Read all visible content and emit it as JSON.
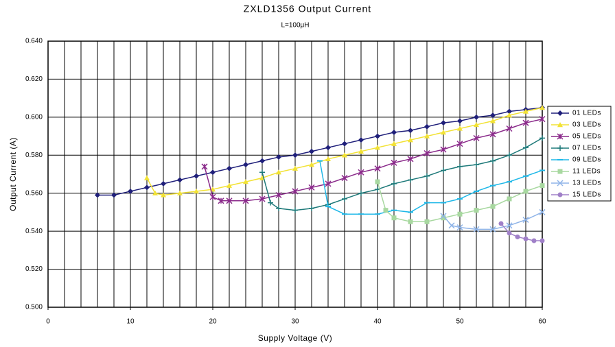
{
  "chart_data": {
    "type": "line",
    "title": "ZXLD1356 Output Current",
    "subtitle": "L=100μH",
    "x_label": "Supply Voltage (V)",
    "y_label": "Output Current (A)",
    "xlim": [
      0,
      60
    ],
    "xticks": [
      0,
      10,
      20,
      30,
      40,
      50,
      60
    ],
    "x_gridlines": [
      0,
      2,
      4,
      6,
      8,
      10,
      12,
      14,
      16,
      18,
      20,
      22,
      24,
      26,
      28,
      30,
      32,
      34,
      36,
      38,
      40,
      42,
      44,
      46,
      48,
      50,
      52,
      54,
      56,
      58,
      60
    ],
    "ylim": [
      0.5,
      0.64
    ],
    "yticks": [
      {
        "value": 0.5,
        "label": "0.500"
      },
      {
        "value": 0.52,
        "label": "0.520"
      },
      {
        "value": 0.54,
        "label": "0.540"
      },
      {
        "value": 0.56,
        "label": "0.560"
      },
      {
        "value": 0.58,
        "label": "0.580"
      },
      {
        "value": 0.6,
        "label": "0.600"
      },
      {
        "value": 0.62,
        "label": "0.620"
      },
      {
        "value": 0.64,
        "label": "0.640"
      }
    ],
    "grid": true,
    "legend": "right",
    "series": [
      {
        "name": "01 LEDs",
        "color": "#1f1f7a",
        "marker": "diamond",
        "x": [
          6,
          8,
          10,
          12,
          14,
          16,
          18,
          20,
          22,
          24,
          26,
          28,
          30,
          32,
          34,
          36,
          38,
          40,
          42,
          44,
          46,
          48,
          50,
          52,
          54,
          56,
          58,
          60
        ],
        "values": [
          0.559,
          0.559,
          0.561,
          0.563,
          0.565,
          0.567,
          0.569,
          0.571,
          0.573,
          0.575,
          0.577,
          0.579,
          0.58,
          0.582,
          0.584,
          0.586,
          0.588,
          0.59,
          0.592,
          0.593,
          0.595,
          0.597,
          0.598,
          0.6,
          0.601,
          0.603,
          0.604,
          0.605
        ]
      },
      {
        "name": "03 LEDs",
        "color": "#f2e234",
        "marker": "triangle",
        "x": [
          12,
          13,
          14,
          16,
          18,
          20,
          22,
          24,
          26,
          28,
          30,
          32,
          34,
          36,
          38,
          40,
          42,
          44,
          46,
          48,
          50,
          52,
          54,
          56,
          58,
          60
        ],
        "values": [
          0.568,
          0.56,
          0.559,
          0.56,
          0.561,
          0.562,
          0.564,
          0.566,
          0.568,
          0.571,
          0.573,
          0.575,
          0.578,
          0.58,
          0.582,
          0.584,
          0.586,
          0.588,
          0.59,
          0.592,
          0.594,
          0.596,
          0.598,
          0.601,
          0.603,
          0.605
        ]
      },
      {
        "name": "05 LEDs",
        "color": "#8a2a8a",
        "marker": "asterisk",
        "x": [
          19,
          20,
          21,
          22,
          24,
          26,
          28,
          30,
          32,
          34,
          36,
          38,
          40,
          42,
          44,
          46,
          48,
          50,
          52,
          54,
          56,
          58,
          60
        ],
        "values": [
          0.574,
          0.558,
          0.556,
          0.556,
          0.556,
          0.557,
          0.559,
          0.561,
          0.563,
          0.565,
          0.568,
          0.571,
          0.573,
          0.576,
          0.578,
          0.581,
          0.583,
          0.586,
          0.589,
          0.591,
          0.594,
          0.597,
          0.599
        ]
      },
      {
        "name": "07 LEDs",
        "color": "#1f7a7a",
        "marker": "plus",
        "x": [
          26,
          27,
          28,
          30,
          32,
          34,
          36,
          38,
          40,
          42,
          44,
          46,
          48,
          50,
          52,
          54,
          56,
          58,
          60
        ],
        "values": [
          0.571,
          0.555,
          0.552,
          0.551,
          0.552,
          0.554,
          0.557,
          0.56,
          0.562,
          0.565,
          0.567,
          0.569,
          0.572,
          0.574,
          0.575,
          0.577,
          0.58,
          0.584,
          0.589
        ]
      },
      {
        "name": "09 LEDs",
        "color": "#1fb8e8",
        "marker": "dash",
        "x": [
          33,
          34,
          36,
          38,
          40,
          42,
          44,
          46,
          48,
          50,
          52,
          54,
          56,
          58,
          60
        ],
        "values": [
          0.577,
          0.553,
          0.549,
          0.549,
          0.549,
          0.551,
          0.55,
          0.555,
          0.555,
          0.557,
          0.561,
          0.564,
          0.566,
          0.569,
          0.572
        ]
      },
      {
        "name": "11 LEDs",
        "color": "#a8d8a0",
        "marker": "square",
        "x": [
          40,
          41,
          42,
          44,
          46,
          48,
          50,
          52,
          54,
          56,
          58,
          60
        ],
        "values": [
          0.566,
          0.551,
          0.547,
          0.545,
          0.545,
          0.547,
          0.549,
          0.551,
          0.553,
          0.557,
          0.561,
          0.564
        ]
      },
      {
        "name": "13 LEDs",
        "color": "#8fb4e8",
        "marker": "x",
        "x": [
          48,
          49,
          50,
          52,
          54,
          56,
          58,
          60
        ],
        "values": [
          0.548,
          0.543,
          0.542,
          0.541,
          0.541,
          0.543,
          0.546,
          0.55
        ]
      },
      {
        "name": "15 LEDs",
        "color": "#a080c8",
        "marker": "circle",
        "x": [
          55,
          56,
          57,
          58,
          59,
          60
        ],
        "values": [
          0.544,
          0.539,
          0.537,
          0.536,
          0.535,
          0.535
        ]
      }
    ]
  }
}
